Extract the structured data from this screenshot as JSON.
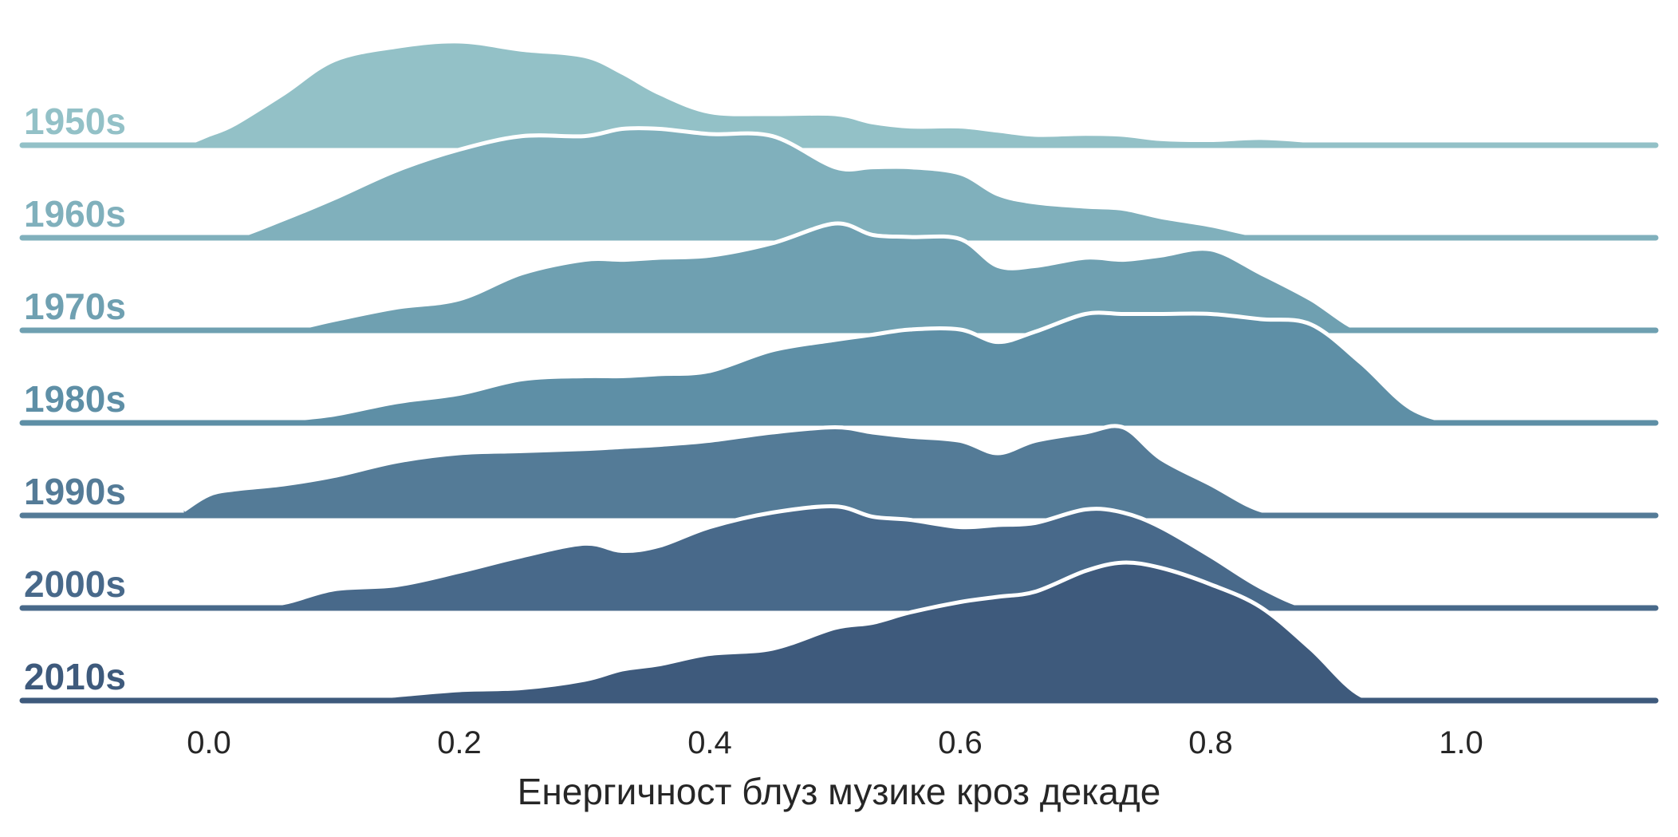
{
  "chart_data": {
    "type": "ridgeline",
    "title": "",
    "xlabel": "Енергичност блуз музике кроз декаде",
    "ylabel": "",
    "xlim": [
      -0.25,
      1.16
    ],
    "xticks": [
      0.0,
      0.2,
      0.4,
      0.6,
      0.8,
      1.0
    ],
    "xtick_labels": [
      "0.0",
      "0.2",
      "0.4",
      "0.6",
      "0.8",
      "1.0"
    ],
    "grid": false,
    "legend": "none",
    "x": [
      -0.02,
      0.0,
      0.02,
      0.06,
      0.1,
      0.15,
      0.2,
      0.25,
      0.3,
      0.33,
      0.36,
      0.4,
      0.45,
      0.5,
      0.53,
      0.56,
      0.6,
      0.63,
      0.66,
      0.7,
      0.73,
      0.76,
      0.8,
      0.84,
      0.88,
      0.92,
      0.96,
      1.0,
      1.04
    ],
    "series": [
      {
        "name": "1950s",
        "color": "#93c1c7",
        "values": [
          0.0,
          0.1,
          0.2,
          0.5,
          0.82,
          0.95,
          1.0,
          0.92,
          0.86,
          0.7,
          0.5,
          0.32,
          0.3,
          0.3,
          0.22,
          0.18,
          0.18,
          0.14,
          0.1,
          0.11,
          0.1,
          0.06,
          0.05,
          0.07,
          0.04,
          0.0,
          0.0,
          0.0,
          0.0
        ]
      },
      {
        "name": "1960s",
        "color": "#80b0bc",
        "values": [
          0.0,
          0.0,
          0.0,
          0.18,
          0.38,
          0.65,
          0.85,
          0.98,
          0.98,
          1.05,
          1.05,
          1.0,
          0.98,
          0.68,
          0.68,
          0.68,
          0.62,
          0.42,
          0.34,
          0.3,
          0.28,
          0.2,
          0.12,
          0.02,
          0.0,
          0.0,
          0.0,
          0.0,
          0.0
        ]
      },
      {
        "name": "1970s",
        "color": "#6fa0b1",
        "values": [
          0.0,
          0.0,
          0.0,
          0.0,
          0.1,
          0.22,
          0.3,
          0.55,
          0.68,
          0.68,
          0.7,
          0.72,
          0.84,
          1.03,
          0.92,
          0.9,
          0.88,
          0.62,
          0.62,
          0.7,
          0.68,
          0.72,
          0.78,
          0.55,
          0.3,
          0.0,
          0.0,
          0.0,
          0.0
        ]
      },
      {
        "name": "1980s",
        "color": "#5e8fa6",
        "values": [
          0.0,
          0.0,
          0.0,
          0.03,
          0.08,
          0.2,
          0.28,
          0.42,
          0.45,
          0.45,
          0.47,
          0.5,
          0.7,
          0.8,
          0.85,
          0.9,
          0.9,
          0.78,
          0.88,
          1.05,
          1.05,
          1.05,
          1.05,
          1.0,
          0.95,
          0.58,
          0.14,
          0.0,
          0.0
        ]
      },
      {
        "name": "1990s",
        "color": "#547b97",
        "values": [
          0.05,
          0.2,
          0.25,
          0.3,
          0.38,
          0.52,
          0.6,
          0.62,
          0.64,
          0.66,
          0.68,
          0.72,
          0.8,
          0.85,
          0.8,
          0.76,
          0.72,
          0.6,
          0.72,
          0.8,
          0.85,
          0.55,
          0.3,
          0.05,
          0.0,
          0.0,
          0.0,
          0.0,
          0.0
        ]
      },
      {
        "name": "2000s",
        "color": "#48698a",
        "values": [
          0.0,
          0.0,
          0.0,
          0.05,
          0.18,
          0.22,
          0.35,
          0.5,
          0.62,
          0.55,
          0.6,
          0.78,
          0.92,
          0.98,
          0.88,
          0.85,
          0.78,
          0.8,
          0.82,
          0.95,
          0.92,
          0.78,
          0.5,
          0.2,
          0.0,
          0.0,
          0.0,
          0.0,
          0.0
        ]
      },
      {
        "name": "2010s",
        "color": "#3e5a7c",
        "values": [
          0.0,
          0.0,
          0.0,
          0.0,
          0.0,
          0.05,
          0.1,
          0.12,
          0.2,
          0.3,
          0.35,
          0.45,
          0.5,
          0.7,
          0.75,
          0.85,
          0.95,
          1.0,
          1.05,
          1.25,
          1.33,
          1.28,
          1.12,
          0.9,
          0.5,
          0.05,
          0.0,
          0.0,
          0.0
        ]
      }
    ]
  }
}
